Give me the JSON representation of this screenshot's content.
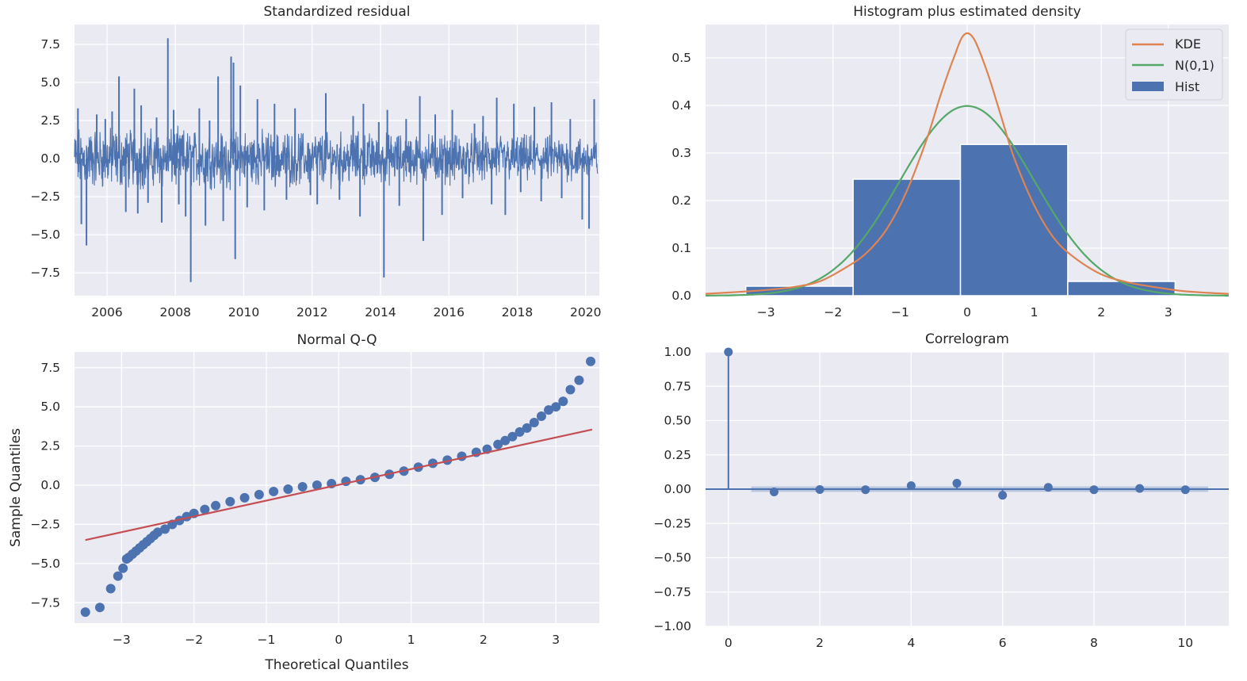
{
  "chart_data": [
    {
      "id": "resid",
      "type": "line",
      "title": "Standardized residual",
      "xlabel": "",
      "ylabel": "",
      "xlim": [
        2005.05,
        2020.4
      ],
      "ylim": [
        -9.0,
        8.8
      ],
      "xticks": [
        2006,
        2008,
        2010,
        2012,
        2014,
        2016,
        2018,
        2020
      ],
      "xtick_labels": [
        "2006",
        "2008",
        "2010",
        "2012",
        "2014",
        "2016",
        "2018",
        "2020"
      ],
      "yticks": [
        7.5,
        5.0,
        2.5,
        0.0,
        -2.5,
        -5.0,
        -7.5
      ],
      "ytick_labels": [
        "7.5",
        "5.0",
        "2.5",
        "0.0",
        "−2.5",
        "−5.0",
        "−7.5"
      ],
      "grid": true,
      "color": "#4c72b0",
      "band": {
        "x_start": 2005.05,
        "x_end": 2020.35,
        "amplitude": 1.3
      },
      "spikes": [
        {
          "x": 2005.15,
          "y": 3.3
        },
        {
          "x": 2005.25,
          "y": -4.3
        },
        {
          "x": 2005.4,
          "y": -5.7
        },
        {
          "x": 2005.7,
          "y": 2.9
        },
        {
          "x": 2005.95,
          "y": 2.6
        },
        {
          "x": 2006.15,
          "y": 3.1
        },
        {
          "x": 2006.35,
          "y": 5.4
        },
        {
          "x": 2006.55,
          "y": -3.5
        },
        {
          "x": 2006.8,
          "y": 4.6
        },
        {
          "x": 2006.9,
          "y": -3.6
        },
        {
          "x": 2007.0,
          "y": 3.5
        },
        {
          "x": 2007.2,
          "y": -2.9
        },
        {
          "x": 2007.45,
          "y": 2.7
        },
        {
          "x": 2007.6,
          "y": -4.2
        },
        {
          "x": 2007.78,
          "y": 7.9
        },
        {
          "x": 2007.95,
          "y": 3.2
        },
        {
          "x": 2008.1,
          "y": -3.0
        },
        {
          "x": 2008.3,
          "y": -3.8
        },
        {
          "x": 2008.45,
          "y": -8.1
        },
        {
          "x": 2008.7,
          "y": 3.3
        },
        {
          "x": 2008.88,
          "y": -4.4
        },
        {
          "x": 2009.0,
          "y": 2.5
        },
        {
          "x": 2009.25,
          "y": 5.4
        },
        {
          "x": 2009.4,
          "y": -4.1
        },
        {
          "x": 2009.63,
          "y": 6.7
        },
        {
          "x": 2009.7,
          "y": 6.3
        },
        {
          "x": 2009.75,
          "y": -6.6
        },
        {
          "x": 2009.9,
          "y": 4.8
        },
        {
          "x": 2010.1,
          "y": -3.2
        },
        {
          "x": 2010.4,
          "y": 3.9
        },
        {
          "x": 2010.6,
          "y": -3.4
        },
        {
          "x": 2010.9,
          "y": 3.6
        },
        {
          "x": 2011.25,
          "y": -2.7
        },
        {
          "x": 2011.5,
          "y": 3.3
        },
        {
          "x": 2011.95,
          "y": -2.4
        },
        {
          "x": 2012.15,
          "y": -3.0
        },
        {
          "x": 2012.4,
          "y": 4.3
        },
        {
          "x": 2012.8,
          "y": -2.7
        },
        {
          "x": 2013.2,
          "y": 2.8
        },
        {
          "x": 2013.4,
          "y": -3.8
        },
        {
          "x": 2013.5,
          "y": 3.6
        },
        {
          "x": 2013.95,
          "y": 2.4
        },
        {
          "x": 2014.1,
          "y": -7.8
        },
        {
          "x": 2014.2,
          "y": 3.2
        },
        {
          "x": 2014.55,
          "y": -3.1
        },
        {
          "x": 2014.75,
          "y": 2.6
        },
        {
          "x": 2015.15,
          "y": 4.1
        },
        {
          "x": 2015.25,
          "y": -5.4
        },
        {
          "x": 2015.6,
          "y": 2.9
        },
        {
          "x": 2015.8,
          "y": -3.7
        },
        {
          "x": 2016.1,
          "y": 3.2
        },
        {
          "x": 2016.4,
          "y": -2.6
        },
        {
          "x": 2016.75,
          "y": 2.3
        },
        {
          "x": 2017.0,
          "y": 2.8
        },
        {
          "x": 2017.25,
          "y": -3.0
        },
        {
          "x": 2017.4,
          "y": 4.0
        },
        {
          "x": 2017.65,
          "y": -3.7
        },
        {
          "x": 2017.9,
          "y": 3.6
        },
        {
          "x": 2018.1,
          "y": -2.2
        },
        {
          "x": 2018.5,
          "y": 3.4
        },
        {
          "x": 2018.7,
          "y": -2.8
        },
        {
          "x": 2019.0,
          "y": 3.7
        },
        {
          "x": 2019.3,
          "y": -2.6
        },
        {
          "x": 2019.55,
          "y": 2.6
        },
        {
          "x": 2019.9,
          "y": -4.0
        },
        {
          "x": 2020.1,
          "y": -4.6
        },
        {
          "x": 2020.25,
          "y": 3.9
        }
      ]
    },
    {
      "id": "hist",
      "type": "bar",
      "title": "Histogram plus estimated density",
      "xlabel": "",
      "ylabel": "",
      "xlim": [
        -3.9,
        3.9
      ],
      "ylim": [
        0,
        0.57
      ],
      "xticks": [
        -3,
        -2,
        -1,
        0,
        1,
        2,
        3
      ],
      "xtick_labels": [
        "−3",
        "−2",
        "−1",
        "0",
        "1",
        "2",
        "3"
      ],
      "yticks": [
        0.0,
        0.1,
        0.2,
        0.3,
        0.4,
        0.5
      ],
      "ytick_labels": [
        "0.0",
        "0.1",
        "0.2",
        "0.3",
        "0.4",
        "0.5"
      ],
      "grid": true,
      "bins": [
        {
          "x0": -3.3,
          "x1": -1.7,
          "value": 0.02
        },
        {
          "x0": -1.7,
          "x1": -0.1,
          "value": 0.245
        },
        {
          "x0": -0.1,
          "x1": 1.5,
          "value": 0.318
        },
        {
          "x0": 1.5,
          "x1": 3.1,
          "value": 0.03
        }
      ],
      "kde": {
        "x": [
          -3.9,
          -3.4,
          -3.0,
          -2.6,
          -2.2,
          -1.8,
          -1.5,
          -1.2,
          -0.9,
          -0.6,
          -0.4,
          -0.2,
          -0.05,
          0.1,
          0.3,
          0.5,
          0.7,
          1.0,
          1.3,
          1.6,
          2.0,
          2.4,
          2.8,
          3.2,
          3.6,
          3.9
        ],
        "y": [
          0.004,
          0.008,
          0.012,
          0.018,
          0.03,
          0.06,
          0.09,
          0.14,
          0.22,
          0.33,
          0.42,
          0.5,
          0.548,
          0.54,
          0.47,
          0.38,
          0.29,
          0.19,
          0.12,
          0.08,
          0.045,
          0.028,
          0.018,
          0.01,
          0.006,
          0.004
        ]
      },
      "normal": {
        "mean": 0,
        "sd": 1
      },
      "series": [
        {
          "name": "KDE",
          "color": "#dd8452"
        },
        {
          "name": "N(0,1)",
          "color": "#55a868"
        },
        {
          "name": "Hist",
          "color": "#4c72b0"
        }
      ],
      "legend": "top-right"
    },
    {
      "id": "qq",
      "type": "scatter",
      "title": "Normal Q-Q",
      "xlabel": "Theoretical Quantiles",
      "ylabel": "Sample Quantiles",
      "xlim": [
        -3.65,
        3.6
      ],
      "ylim": [
        -8.8,
        8.5
      ],
      "xticks": [
        -3,
        -2,
        -1,
        0,
        1,
        2,
        3
      ],
      "xtick_labels": [
        "−3",
        "−2",
        "−1",
        "0",
        "1",
        "2",
        "3"
      ],
      "yticks": [
        7.5,
        5.0,
        2.5,
        0.0,
        -2.5,
        -5.0,
        -7.5
      ],
      "ytick_labels": [
        "7.5",
        "5.0",
        "2.5",
        "0.0",
        "−2.5",
        "−5.0",
        "−7.5"
      ],
      "grid": true,
      "points": {
        "x": [
          -3.5,
          -3.3,
          -3.15,
          -3.05,
          -2.98,
          -2.93,
          -2.9,
          -2.85,
          -2.8,
          -2.75,
          -2.7,
          -2.65,
          -2.6,
          -2.55,
          -2.5,
          -2.4,
          -2.3,
          -2.2,
          -2.1,
          -2.0,
          -1.85,
          -1.7,
          -1.5,
          -1.3,
          -1.1,
          -0.9,
          -0.7,
          -0.5,
          -0.3,
          -0.1,
          0.1,
          0.3,
          0.5,
          0.7,
          0.9,
          1.1,
          1.3,
          1.5,
          1.7,
          1.9,
          2.05,
          2.2,
          2.3,
          2.4,
          2.5,
          2.6,
          2.7,
          2.8,
          2.9,
          3.0,
          3.1,
          3.2,
          3.32,
          3.48
        ],
        "y": [
          -8.1,
          -7.8,
          -6.6,
          -5.8,
          -5.3,
          -4.7,
          -4.6,
          -4.4,
          -4.2,
          -4.0,
          -3.8,
          -3.6,
          -3.4,
          -3.2,
          -3.0,
          -2.8,
          -2.5,
          -2.25,
          -2.0,
          -1.8,
          -1.55,
          -1.3,
          -1.05,
          -0.8,
          -0.6,
          -0.4,
          -0.25,
          -0.1,
          0.0,
          0.1,
          0.25,
          0.35,
          0.5,
          0.7,
          0.9,
          1.15,
          1.4,
          1.6,
          1.85,
          2.1,
          2.3,
          2.6,
          2.85,
          3.1,
          3.4,
          3.65,
          4.0,
          4.4,
          4.8,
          5.0,
          5.35,
          6.1,
          6.7,
          7.9
        ]
      },
      "reference_line": {
        "x": [
          -3.5,
          3.5
        ],
        "y": [
          -3.5,
          3.55
        ]
      },
      "colors": {
        "points": "#4c72b0",
        "line": "#c44e52"
      }
    },
    {
      "id": "acf",
      "type": "scatter",
      "title": "Correlogram",
      "xlabel": "",
      "ylabel": "",
      "xlim": [
        -0.5,
        10.95
      ],
      "ylim": [
        -1.0,
        1.0
      ],
      "xticks": [
        0,
        2,
        4,
        6,
        8,
        10
      ],
      "xtick_labels": [
        "0",
        "2",
        "4",
        "6",
        "8",
        "10"
      ],
      "yticks": [
        1.0,
        0.75,
        0.5,
        0.25,
        0.0,
        -0.25,
        -0.5,
        -0.75,
        -1.0
      ],
      "ytick_labels": [
        "1.00",
        "0.75",
        "0.50",
        "0.25",
        "0.00",
        "−0.25",
        "−0.50",
        "−0.75",
        "−1.00"
      ],
      "grid": true,
      "lags": [
        0,
        1,
        2,
        3,
        4,
        5,
        6,
        7,
        8,
        9,
        10
      ],
      "values": [
        1.0,
        -0.02,
        -0.003,
        -0.004,
        0.025,
        0.043,
        -0.045,
        0.013,
        -0.004,
        0.005,
        -0.004
      ],
      "confidence_band": 0.02,
      "color": "#4c72b0"
    }
  ]
}
